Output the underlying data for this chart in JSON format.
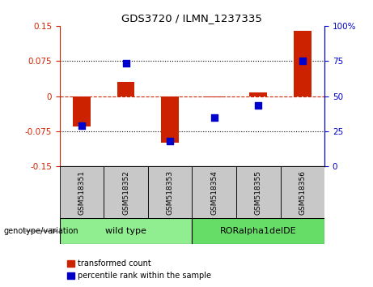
{
  "title": "GDS3720 / ILMN_1237335",
  "samples": [
    "GSM518351",
    "GSM518352",
    "GSM518353",
    "GSM518354",
    "GSM518355",
    "GSM518356"
  ],
  "red_bars": [
    -0.065,
    0.03,
    -0.1,
    -0.003,
    0.008,
    0.14
  ],
  "blue_squares_left": [
    -0.063,
    0.07,
    -0.095,
    -0.045,
    -0.02,
    0.075
  ],
  "ylim_left": [
    -0.15,
    0.15
  ],
  "yticks_left": [
    -0.15,
    -0.075,
    0,
    0.075,
    0.15
  ],
  "ylim_right": [
    0,
    100
  ],
  "yticks_right": [
    0,
    25,
    50,
    75,
    100
  ],
  "ytick_labels_right": [
    "0",
    "25",
    "50",
    "75",
    "100%"
  ],
  "group_boundary": 2.5,
  "bar_color": "#CC2200",
  "square_color": "#0000CC",
  "hline_color": "#CC2200",
  "dotted_color": "#000000",
  "bg_color": "#FFFFFF",
  "sample_box_color": "#C8C8C8",
  "genotype_label": "genotype/variation",
  "group1_label": "wild type",
  "group2_label": "RORalpha1delDE",
  "group_color1": "#90EE90",
  "group_color2": "#66DD66",
  "legend_red": "transformed count",
  "legend_blue": "percentile rank within the sample",
  "bar_width": 0.4
}
